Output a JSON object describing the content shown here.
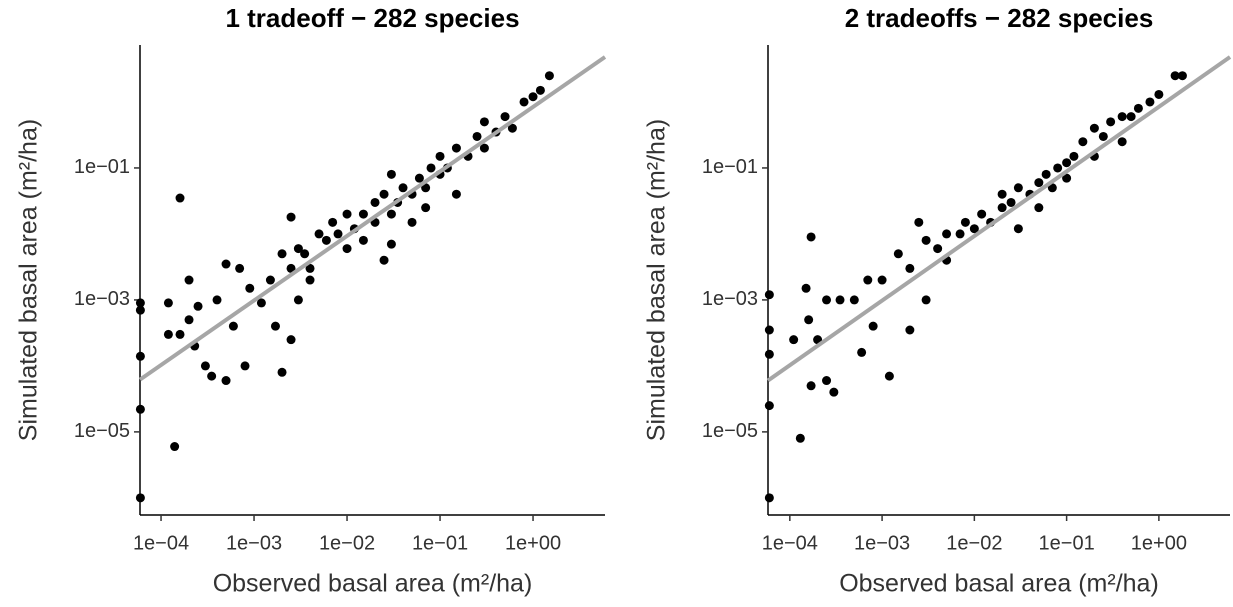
{
  "chart_data": [
    {
      "type": "scatter",
      "title": "1 tradeoff − 282 species",
      "x_label": "Observed basal area (m²/ha)",
      "y_label": "Simulated basal area (m²/ha)",
      "log_x": true,
      "log_y": true,
      "color": "#000000",
      "xlim": [
        5.94e-05,
        5.94
      ],
      "ylim": [
        5.5e-07,
        7.3
      ],
      "xticks": [
        {
          "value": 0.0001,
          "label": "1e−04"
        },
        {
          "value": 0.001,
          "label": "1e−03"
        },
        {
          "value": 0.01,
          "label": "1e−02"
        },
        {
          "value": 0.1,
          "label": "1e−01"
        },
        {
          "value": 1,
          "label": "1e+00"
        }
      ],
      "yticks": [
        {
          "value": 1e-05,
          "label": "1e−05"
        },
        {
          "value": 0.001,
          "label": "1e−03"
        },
        {
          "value": 0.1,
          "label": "1e−01"
        }
      ],
      "fit": {
        "x": [
          5.94e-05,
          5.94
        ],
        "y": [
          6.2e-05,
          4.8
        ],
        "color": "#a6a6a6"
      },
      "x": [
        6e-05,
        6e-05,
        6e-05,
        6e-05,
        6e-05,
        0.00014,
        0.00016,
        0.00012,
        0.00012,
        0.00016,
        0.0002,
        0.0002,
        0.00023,
        0.00025,
        0.0003,
        0.00035,
        0.0004,
        0.0005,
        0.0005,
        0.0006,
        0.0007,
        0.0008,
        0.0009,
        0.0012,
        0.0015,
        0.0017,
        0.002,
        0.002,
        0.0025,
        0.0025,
        0.003,
        0.003,
        0.0025,
        0.0035,
        0.004,
        0.004,
        0.005,
        0.006,
        0.007,
        0.008,
        0.01,
        0.01,
        0.012,
        0.015,
        0.015,
        0.02,
        0.02,
        0.025,
        0.025,
        0.03,
        0.03,
        0.035,
        0.04,
        0.05,
        0.05,
        0.06,
        0.07,
        0.08,
        0.1,
        0.1,
        0.12,
        0.15,
        0.2,
        0.25,
        0.3,
        0.3,
        0.4,
        0.5,
        0.6,
        0.8,
        1,
        1.2,
        1.5,
        0.03,
        0.15,
        0.07
      ],
      "y": [
        1e-06,
        2.2e-05,
        0.00014,
        0.0007,
        0.0009,
        6e-06,
        0.035,
        0.0009,
        0.0003,
        0.0003,
        0.002,
        0.0005,
        0.0002,
        0.0008,
        0.0001,
        7e-05,
        0.001,
        6e-05,
        0.0035,
        0.0004,
        0.003,
        0.0001,
        0.0015,
        0.0009,
        0.002,
        0.0004,
        0.005,
        8e-05,
        0.003,
        0.00025,
        0.006,
        0.001,
        0.018,
        0.005,
        0.003,
        0.002,
        0.01,
        0.008,
        0.015,
        0.01,
        0.02,
        0.006,
        0.012,
        0.02,
        0.008,
        0.03,
        0.015,
        0.04,
        0.004,
        0.02,
        0.08,
        0.03,
        0.05,
        0.04,
        0.015,
        0.07,
        0.05,
        0.1,
        0.08,
        0.15,
        0.1,
        0.2,
        0.15,
        0.3,
        0.2,
        0.5,
        0.35,
        0.6,
        0.4,
        1,
        1.2,
        1.5,
        2.5,
        0.007,
        0.04,
        0.025
      ]
    },
    {
      "type": "scatter",
      "title": "2 tradeoffs − 282 species",
      "x_label": "Observed basal area (m²/ha)",
      "y_label": "Simulated basal area (m²/ha)",
      "log_x": true,
      "log_y": true,
      "color": "#000000",
      "xlim": [
        5.8e-05,
        5.9
      ],
      "ylim": [
        5.5e-07,
        7.3
      ],
      "xticks": [
        {
          "value": 0.0001,
          "label": "1e−04"
        },
        {
          "value": 0.001,
          "label": "1e−03"
        },
        {
          "value": 0.01,
          "label": "1e−02"
        },
        {
          "value": 0.1,
          "label": "1e−01"
        },
        {
          "value": 1,
          "label": "1e+00"
        }
      ],
      "yticks": [
        {
          "value": 1e-05,
          "label": "1e−05"
        },
        {
          "value": 0.001,
          "label": "1e−03"
        },
        {
          "value": 0.1,
          "label": "1e−01"
        }
      ],
      "fit": {
        "x": [
          5.8e-05,
          5.9
        ],
        "y": [
          6e-05,
          4.8
        ],
        "color": "#a6a6a6"
      },
      "x": [
        6e-05,
        6e-05,
        6e-05,
        6e-05,
        6e-05,
        0.00013,
        0.00017,
        0.00011,
        0.00015,
        0.00016,
        0.00017,
        0.0002,
        0.00025,
        0.00025,
        0.0003,
        0.00035,
        0.0005,
        0.0006,
        0.0007,
        0.0008,
        0.001,
        0.0012,
        0.0015,
        0.002,
        0.002,
        0.0025,
        0.003,
        0.003,
        0.004,
        0.005,
        0.005,
        0.007,
        0.008,
        0.01,
        0.012,
        0.015,
        0.02,
        0.02,
        0.025,
        0.03,
        0.03,
        0.04,
        0.05,
        0.05,
        0.06,
        0.07,
        0.08,
        0.1,
        0.1,
        0.12,
        0.15,
        0.2,
        0.25,
        0.3,
        0.4,
        0.5,
        0.6,
        0.8,
        1,
        1.5,
        1.8,
        0.2,
        0.4
      ],
      "y": [
        1e-06,
        2.5e-05,
        0.00015,
        0.00035,
        0.0012,
        8e-06,
        0.009,
        0.00025,
        0.0015,
        0.0005,
        5e-05,
        0.00025,
        0.001,
        6e-05,
        4e-05,
        0.001,
        0.001,
        0.00016,
        0.002,
        0.0004,
        0.002,
        7e-05,
        0.005,
        0.003,
        0.00035,
        0.015,
        0.008,
        0.001,
        0.006,
        0.01,
        0.004,
        0.01,
        0.015,
        0.012,
        0.02,
        0.015,
        0.025,
        0.04,
        0.03,
        0.05,
        0.012,
        0.04,
        0.06,
        0.025,
        0.08,
        0.05,
        0.1,
        0.12,
        0.07,
        0.15,
        0.25,
        0.15,
        0.3,
        0.5,
        0.6,
        0.6,
        0.8,
        1,
        1.3,
        2.5,
        2.5,
        0.4,
        0.25
      ]
    }
  ]
}
